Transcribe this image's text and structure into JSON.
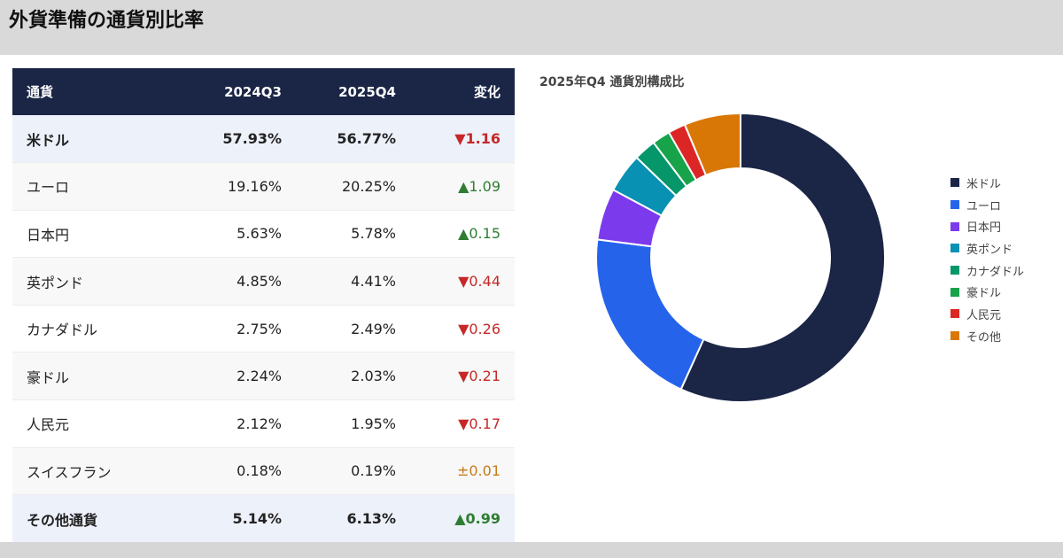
{
  "header": {
    "title": "外貨準備の通貨別比率"
  },
  "table": {
    "columns": [
      "通貨",
      "2024Q3",
      "2025Q4",
      "変化"
    ],
    "rows": [
      {
        "currency": "米ドル",
        "q3_2024": "57.93%",
        "q4_2025": "56.77%",
        "change": "▼1.16",
        "dir": "down",
        "bold": true
      },
      {
        "currency": "ユーロ",
        "q3_2024": "19.16%",
        "q4_2025": "20.25%",
        "change": "▲1.09",
        "dir": "up",
        "bold": false
      },
      {
        "currency": "日本円",
        "q3_2024": "5.63%",
        "q4_2025": "5.78%",
        "change": "▲0.15",
        "dir": "up",
        "bold": false
      },
      {
        "currency": "英ポンド",
        "q3_2024": "4.85%",
        "q4_2025": "4.41%",
        "change": "▼0.44",
        "dir": "down",
        "bold": false
      },
      {
        "currency": "カナダドル",
        "q3_2024": "2.75%",
        "q4_2025": "2.49%",
        "change": "▼0.26",
        "dir": "down",
        "bold": false
      },
      {
        "currency": "豪ドル",
        "q3_2024": "2.24%",
        "q4_2025": "2.03%",
        "change": "▼0.21",
        "dir": "down",
        "bold": false
      },
      {
        "currency": "人民元",
        "q3_2024": "2.12%",
        "q4_2025": "1.95%",
        "change": "▼0.17",
        "dir": "down",
        "bold": false
      },
      {
        "currency": "スイスフラン",
        "q3_2024": "0.18%",
        "q4_2025": "0.19%",
        "change": "±0.01",
        "dir": "flat",
        "bold": false
      },
      {
        "currency": "その他通貨",
        "q3_2024": "5.14%",
        "q4_2025": "6.13%",
        "change": "▲0.99",
        "dir": "up",
        "bold": true
      }
    ]
  },
  "colors": {
    "header_bg": "#1b2545",
    "down": "#c62828",
    "up": "#2e7d32",
    "flat": "#c77a16"
  },
  "chart_data": {
    "type": "pie",
    "title": "2025年Q4 通貨別構成比",
    "donut": true,
    "legend_position": "right",
    "categories": [
      "米ドル",
      "ユーロ",
      "日本円",
      "英ポンド",
      "カナダドル",
      "豪ドル",
      "人民元",
      "その他"
    ],
    "values": [
      56.77,
      20.25,
      5.78,
      4.41,
      2.49,
      2.03,
      1.95,
      6.32
    ],
    "colors": [
      "#1b2545",
      "#2563eb",
      "#7c3aed",
      "#0891b2",
      "#059669",
      "#16a34a",
      "#dc2626",
      "#d97706"
    ]
  }
}
